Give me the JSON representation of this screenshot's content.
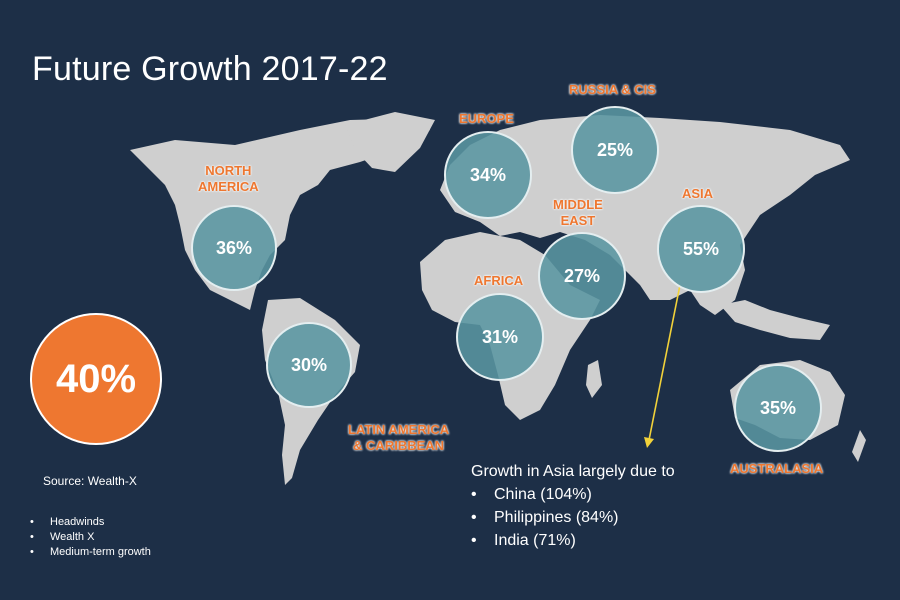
{
  "title": "Future Growth 2017-22",
  "colors": {
    "background": "#1d2f47",
    "land": "#cfcfcf",
    "accent_orange": "#ee7730",
    "bubble_fill": "#5a96a2",
    "arrow": "#f2d23a"
  },
  "regions": [
    {
      "id": "north-america",
      "name": "NORTH\nAMERICA",
      "growth": "36%"
    },
    {
      "id": "latin-america",
      "name": "LATIN AMERICA\n& CARIBBEAN",
      "growth": "30%"
    },
    {
      "id": "europe",
      "name": "EUROPE",
      "growth": "34%"
    },
    {
      "id": "russia-cis",
      "name": "RUSSIA & CIS",
      "growth": "25%"
    },
    {
      "id": "middle-east",
      "name": "MIDDLE\nEAST",
      "growth": "27%"
    },
    {
      "id": "africa",
      "name": "AFRICA",
      "growth": "31%"
    },
    {
      "id": "asia",
      "name": "ASIA",
      "growth": "55%"
    },
    {
      "id": "australasia",
      "name": "AUSTRALASIA",
      "growth": "35%"
    }
  ],
  "global_growth": "40%",
  "source": "Source: Wealth-X",
  "small_bullets": [
    "Headwinds",
    "Wealth X",
    "Medium-term growth"
  ],
  "asia_note": {
    "heading": "Growth in Asia largely due to",
    "items": [
      "China (104%)",
      "Philippines (84%)",
      "India (71%)"
    ]
  }
}
